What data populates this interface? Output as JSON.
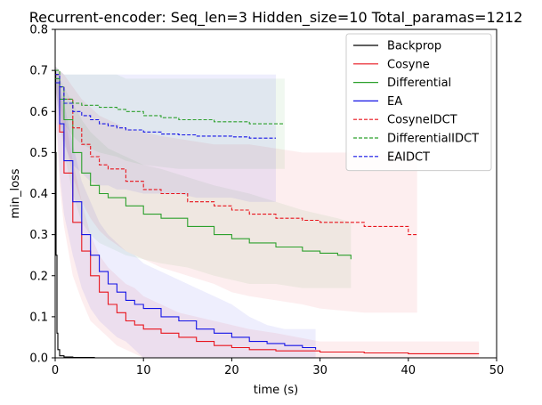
{
  "chart_data": {
    "type": "line",
    "title": "Recurrent-encoder: Seq_len=3 Hidden_size=10 Total_paramas=1212",
    "xlabel": "time (s)",
    "ylabel": "min_loss",
    "xlim": [
      0,
      50
    ],
    "ylim": [
      0,
      0.8
    ],
    "xticks": [
      0,
      10,
      20,
      30,
      40,
      50
    ],
    "xtick_labels": [
      "0",
      "10",
      "20",
      "30",
      "40",
      "50"
    ],
    "yticks": [
      0.0,
      0.1,
      0.2,
      0.3,
      0.4,
      0.5,
      0.6,
      0.7,
      0.8
    ],
    "ytick_labels": [
      "0.0",
      "0.1",
      "0.2",
      "0.3",
      "0.4",
      "0.5",
      "0.6",
      "0.7",
      "0.8"
    ],
    "grid": false,
    "legend_position": "top-right",
    "series": [
      {
        "name": "Backprop",
        "color": "#000000",
        "style": "solid",
        "x": [
          0,
          0.05,
          0.1,
          0.2,
          0.3,
          0.5,
          1,
          2,
          4.5
        ],
        "y": [
          0.7,
          0.5,
          0.25,
          0.06,
          0.02,
          0.005,
          0.002,
          0.001,
          0.001
        ],
        "band_lower": [],
        "band_upper": []
      },
      {
        "name": "Cosyne",
        "color": "#e8141c",
        "style": "solid",
        "x": [
          0,
          0.5,
          1,
          2,
          3,
          4,
          5,
          6,
          7,
          8,
          9,
          10,
          12,
          14,
          16,
          18,
          20,
          22,
          25,
          30,
          35,
          40,
          48
        ],
        "y": [
          0.67,
          0.55,
          0.45,
          0.33,
          0.26,
          0.2,
          0.16,
          0.13,
          0.11,
          0.09,
          0.08,
          0.07,
          0.06,
          0.05,
          0.04,
          0.03,
          0.025,
          0.02,
          0.017,
          0.014,
          0.012,
          0.01,
          0.01
        ],
        "band_lower": [
          0.62,
          0.42,
          0.32,
          0.2,
          0.14,
          0.09,
          0.07,
          0.05,
          0.03,
          0.02,
          0.01,
          0.0,
          0.0,
          0.0,
          0.0,
          0.0,
          0.0,
          0.0,
          0.0,
          0.0,
          0.0,
          0.0,
          0.0
        ],
        "band_upper": [
          0.7,
          0.66,
          0.6,
          0.48,
          0.38,
          0.3,
          0.25,
          0.22,
          0.2,
          0.18,
          0.17,
          0.15,
          0.13,
          0.11,
          0.1,
          0.09,
          0.08,
          0.07,
          0.06,
          0.04,
          0.04,
          0.04,
          0.04
        ]
      },
      {
        "name": "Differential",
        "color": "#2ca02c",
        "style": "solid",
        "x": [
          0,
          0.5,
          1,
          2,
          3,
          4,
          5,
          6,
          8,
          10,
          12,
          15,
          18,
          20,
          22,
          25,
          28,
          30,
          32,
          33.5
        ],
        "y": [
          0.68,
          0.63,
          0.58,
          0.5,
          0.45,
          0.42,
          0.4,
          0.39,
          0.37,
          0.35,
          0.34,
          0.32,
          0.3,
          0.29,
          0.28,
          0.27,
          0.26,
          0.255,
          0.25,
          0.24
        ],
        "band_lower": [
          0.66,
          0.58,
          0.5,
          0.4,
          0.33,
          0.3,
          0.28,
          0.27,
          0.25,
          0.24,
          0.23,
          0.22,
          0.2,
          0.19,
          0.18,
          0.18,
          0.17,
          0.17,
          0.17,
          0.17
        ],
        "band_upper": [
          0.7,
          0.68,
          0.66,
          0.62,
          0.58,
          0.55,
          0.53,
          0.51,
          0.49,
          0.47,
          0.46,
          0.44,
          0.42,
          0.41,
          0.4,
          0.38,
          0.36,
          0.35,
          0.34,
          0.33
        ]
      },
      {
        "name": "EA",
        "color": "#1414e6",
        "style": "solid",
        "x": [
          0,
          0.5,
          1,
          2,
          3,
          4,
          5,
          6,
          7,
          8,
          9,
          10,
          12,
          14,
          16,
          18,
          20,
          22,
          24,
          26,
          28,
          29.5
        ],
        "y": [
          0.67,
          0.57,
          0.48,
          0.38,
          0.3,
          0.25,
          0.21,
          0.18,
          0.16,
          0.14,
          0.13,
          0.12,
          0.1,
          0.09,
          0.07,
          0.06,
          0.05,
          0.04,
          0.035,
          0.03,
          0.025,
          0.02
        ],
        "band_lower": [
          0.64,
          0.45,
          0.35,
          0.25,
          0.17,
          0.12,
          0.09,
          0.07,
          0.05,
          0.04,
          0.02,
          0.0,
          0.0,
          0.0,
          0.0,
          0.0,
          0.0,
          0.0,
          0.0,
          0.0,
          0.0,
          0.0
        ],
        "band_upper": [
          0.7,
          0.67,
          0.62,
          0.52,
          0.43,
          0.38,
          0.33,
          0.3,
          0.28,
          0.26,
          0.25,
          0.23,
          0.21,
          0.19,
          0.17,
          0.15,
          0.13,
          0.1,
          0.08,
          0.07,
          0.07,
          0.07
        ]
      },
      {
        "name": "CosyneIDCT",
        "color": "#e8141c",
        "style": "dashed",
        "x": [
          0,
          0.5,
          1,
          2,
          3,
          4,
          5,
          6,
          8,
          10,
          12,
          15,
          18,
          20,
          22,
          25,
          28,
          30,
          35,
          40,
          41
        ],
        "y": [
          0.69,
          0.66,
          0.63,
          0.56,
          0.52,
          0.49,
          0.47,
          0.46,
          0.43,
          0.41,
          0.4,
          0.38,
          0.37,
          0.36,
          0.35,
          0.34,
          0.335,
          0.33,
          0.32,
          0.3,
          0.3
        ],
        "band_lower": [
          0.66,
          0.6,
          0.54,
          0.44,
          0.38,
          0.34,
          0.31,
          0.29,
          0.26,
          0.24,
          0.22,
          0.2,
          0.18,
          0.16,
          0.15,
          0.14,
          0.13,
          0.12,
          0.11,
          0.11,
          0.11
        ],
        "band_upper": [
          0.71,
          0.7,
          0.69,
          0.66,
          0.63,
          0.61,
          0.59,
          0.58,
          0.56,
          0.55,
          0.54,
          0.53,
          0.52,
          0.52,
          0.52,
          0.51,
          0.5,
          0.5,
          0.5,
          0.49,
          0.49
        ]
      },
      {
        "name": "DifferentialIDCT",
        "color": "#2ca02c",
        "style": "dashed",
        "x": [
          0,
          0.5,
          1,
          2,
          3,
          5,
          7,
          8,
          10,
          12,
          14,
          16,
          18,
          20,
          22,
          24,
          26
        ],
        "y": [
          0.7,
          0.66,
          0.63,
          0.62,
          0.615,
          0.61,
          0.605,
          0.6,
          0.59,
          0.585,
          0.58,
          0.58,
          0.575,
          0.575,
          0.57,
          0.57,
          0.57
        ],
        "band_lower": [
          0.68,
          0.62,
          0.57,
          0.54,
          0.52,
          0.5,
          0.49,
          0.48,
          0.47,
          0.465,
          0.46,
          0.46,
          0.46,
          0.46,
          0.46,
          0.46,
          0.46
        ],
        "band_upper": [
          0.71,
          0.7,
          0.69,
          0.69,
          0.69,
          0.69,
          0.69,
          0.68,
          0.68,
          0.68,
          0.68,
          0.68,
          0.68,
          0.68,
          0.68,
          0.68,
          0.68
        ]
      },
      {
        "name": "EAIDCT",
        "color": "#1414e6",
        "style": "dashed",
        "x": [
          0,
          0.5,
          1,
          2,
          3,
          4,
          5,
          6,
          7,
          8,
          10,
          12,
          14,
          16,
          18,
          20,
          22,
          24,
          25
        ],
        "y": [
          0.69,
          0.66,
          0.62,
          0.6,
          0.59,
          0.58,
          0.57,
          0.565,
          0.56,
          0.555,
          0.55,
          0.545,
          0.543,
          0.54,
          0.54,
          0.538,
          0.535,
          0.535,
          0.535
        ],
        "band_lower": [
          0.66,
          0.58,
          0.52,
          0.47,
          0.45,
          0.43,
          0.42,
          0.42,
          0.41,
          0.41,
          0.4,
          0.4,
          0.4,
          0.39,
          0.39,
          0.39,
          0.38,
          0.38,
          0.38
        ],
        "band_upper": [
          0.71,
          0.7,
          0.69,
          0.69,
          0.69,
          0.69,
          0.69,
          0.69,
          0.69,
          0.69,
          0.69,
          0.69,
          0.69,
          0.69,
          0.69,
          0.69,
          0.69,
          0.69,
          0.69
        ]
      }
    ]
  }
}
